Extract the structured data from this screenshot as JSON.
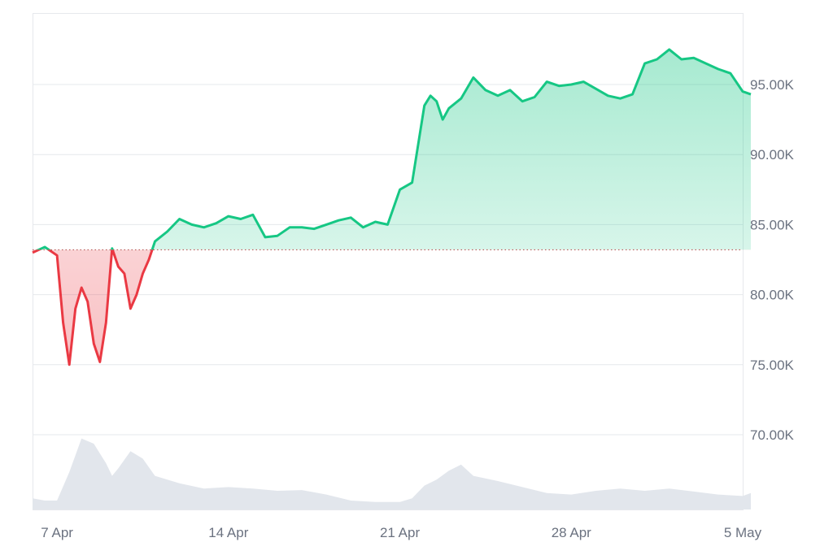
{
  "chart_data": {
    "type": "area",
    "title": "",
    "xlabel": "",
    "ylabel": "",
    "baseline": 83200,
    "ylim": [
      65000,
      100000
    ],
    "x_range": [
      "2025-04-06",
      "2025-05-05"
    ],
    "y_ticks": [
      {
        "value": 70000,
        "label": "70.00K"
      },
      {
        "value": 75000,
        "label": "75.00K"
      },
      {
        "value": 80000,
        "label": "80.00K"
      },
      {
        "value": 85000,
        "label": "85.00K"
      },
      {
        "value": 90000,
        "label": "90.00K"
      },
      {
        "value": 95000,
        "label": "95.00K"
      }
    ],
    "x_ticks": [
      {
        "date": "2025-04-07",
        "label": "7 Apr"
      },
      {
        "date": "2025-04-14",
        "label": "14 Apr"
      },
      {
        "date": "2025-04-21",
        "label": "21 Apr"
      },
      {
        "date": "2025-04-28",
        "label": "28 Apr"
      },
      {
        "date": "2025-05-05",
        "label": "5 May"
      }
    ],
    "series": [
      {
        "x": [
          "2025-04-06",
          "2025-04-06T12:00",
          "2025-04-07",
          "2025-04-07T06:00",
          "2025-04-07T12:00",
          "2025-04-07T18:00",
          "2025-04-08",
          "2025-04-08T06:00",
          "2025-04-08T12:00",
          "2025-04-08T18:00",
          "2025-04-09",
          "2025-04-09T06:00",
          "2025-04-09T12:00",
          "2025-04-09T18:00",
          "2025-04-10",
          "2025-04-10T06:00",
          "2025-04-10T12:00",
          "2025-04-10T18:00",
          "2025-04-11",
          "2025-04-11T12:00",
          "2025-04-12",
          "2025-04-12T12:00",
          "2025-04-13",
          "2025-04-13T12:00",
          "2025-04-14",
          "2025-04-14T12:00",
          "2025-04-15",
          "2025-04-15T12:00",
          "2025-04-16",
          "2025-04-16T12:00",
          "2025-04-17",
          "2025-04-17T12:00",
          "2025-04-18",
          "2025-04-18T12:00",
          "2025-04-19",
          "2025-04-19T12:00",
          "2025-04-20",
          "2025-04-20T12:00",
          "2025-04-21",
          "2025-04-21T12:00",
          "2025-04-22",
          "2025-04-22T06:00",
          "2025-04-22T12:00",
          "2025-04-22T18:00",
          "2025-04-23",
          "2025-04-23T12:00",
          "2025-04-24",
          "2025-04-24T12:00",
          "2025-04-25",
          "2025-04-25T12:00",
          "2025-04-26",
          "2025-04-26T12:00",
          "2025-04-27",
          "2025-04-27T12:00",
          "2025-04-28",
          "2025-04-28T12:00",
          "2025-04-29",
          "2025-04-29T12:00",
          "2025-04-30",
          "2025-04-30T12:00",
          "2025-05-01",
          "2025-05-01T12:00",
          "2025-05-02",
          "2025-05-02T12:00",
          "2025-05-03",
          "2025-05-03T12:00",
          "2025-05-04",
          "2025-05-04T12:00",
          "2025-05-05",
          "2025-05-05T08:00"
        ],
        "values": [
          83000,
          83400,
          82800,
          78000,
          75000,
          79000,
          80500,
          79500,
          76500,
          75200,
          78000,
          83300,
          82000,
          81500,
          79000,
          80000,
          81500,
          82500,
          83800,
          84500,
          85400,
          85000,
          84800,
          85100,
          85600,
          85400,
          85700,
          84100,
          84200,
          84800,
          84800,
          84700,
          85000,
          85300,
          85500,
          84800,
          85200,
          85000,
          87500,
          88000,
          93500,
          94200,
          93800,
          92500,
          93300,
          94000,
          95500,
          94600,
          94200,
          94600,
          93800,
          94100,
          95200,
          94900,
          95000,
          95200,
          94700,
          94200,
          94000,
          94300,
          96500,
          96800,
          97500,
          96800,
          96900,
          96500,
          96100,
          95800,
          94500,
          94300
        ]
      }
    ],
    "volume": {
      "ylim": [
        0,
        100
      ],
      "x": [
        "2025-04-06",
        "2025-04-06T12:00",
        "2025-04-07",
        "2025-04-07T12:00",
        "2025-04-08",
        "2025-04-08T12:00",
        "2025-04-09",
        "2025-04-09T06:00",
        "2025-04-09T12:00",
        "2025-04-10",
        "2025-04-10T12:00",
        "2025-04-11",
        "2025-04-12",
        "2025-04-13",
        "2025-04-14",
        "2025-04-15",
        "2025-04-16",
        "2025-04-17",
        "2025-04-18",
        "2025-04-19",
        "2025-04-20",
        "2025-04-21",
        "2025-04-21T12:00",
        "2025-04-22",
        "2025-04-22T12:00",
        "2025-04-23",
        "2025-04-23T12:00",
        "2025-04-24",
        "2025-04-25",
        "2025-04-26",
        "2025-04-27",
        "2025-04-28",
        "2025-04-29",
        "2025-04-30",
        "2025-05-01",
        "2025-05-02",
        "2025-05-03",
        "2025-05-04",
        "2025-05-05",
        "2025-05-05T08:00"
      ],
      "values": [
        15,
        12,
        12,
        50,
        95,
        88,
        62,
        45,
        55,
        78,
        68,
        45,
        35,
        28,
        30,
        28,
        25,
        26,
        20,
        12,
        10,
        10,
        15,
        32,
        40,
        52,
        60,
        45,
        38,
        30,
        22,
        20,
        25,
        28,
        25,
        28,
        24,
        20,
        18,
        22
      ]
    },
    "colors": {
      "up_line": "#16c784",
      "down_line": "#ea3943",
      "up_fill": "#16c784",
      "down_fill": "#ea3943",
      "volume_fill": "#e2e6ec",
      "grid": "#e6e8ec",
      "baseline": "#b85a5a",
      "axis_text": "#6b7280"
    },
    "grid": true,
    "legend": "none"
  }
}
